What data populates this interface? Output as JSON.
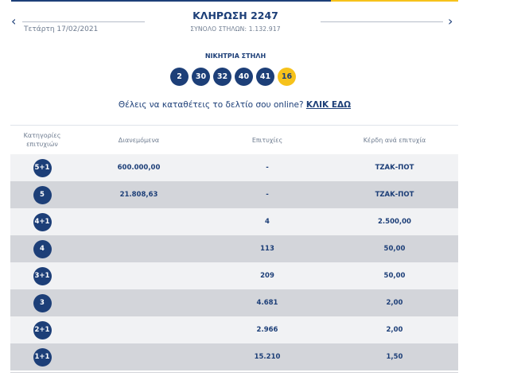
{
  "header": {
    "title": "ΚΛΗΡΩΣΗ 2247",
    "date": "Τετάρτη 17/02/2021",
    "columns": "ΣΥΝΟΛΟ ΣΤΗΛΩΝ: 1.132.917",
    "prev_icon": "chevron-left-icon",
    "next_icon": "chevron-right-icon"
  },
  "winning": {
    "label": "ΝΙΚΗΤΡΙΑ ΣΤΗΛΗ",
    "numbers": [
      "2",
      "30",
      "32",
      "40",
      "41"
    ],
    "joker": "16"
  },
  "cta": {
    "text": "Θέλεις να καταθέτεις το δελτίο σου online?",
    "link": "ΚΛΙΚ ΕΔΩ"
  },
  "table": {
    "headers": {
      "category_line1": "Κατηγορίες",
      "category_line2": "επιτυχιών",
      "distributed": "Διανεμόμενα",
      "winners": "Επιτυχίες",
      "prize": "Κέρδη ανά επιτυχία"
    },
    "rows": [
      {
        "category": "5+1",
        "distributed": "600.000,00",
        "winners": "-",
        "prize": "ΤΖΑΚ-ΠΟΤ"
      },
      {
        "category": "5",
        "distributed": "21.808,63",
        "winners": "-",
        "prize": "ΤΖΑΚ-ΠΟΤ"
      },
      {
        "category": "4+1",
        "distributed": "",
        "winners": "4",
        "prize": "2.500,00"
      },
      {
        "category": "4",
        "distributed": "",
        "winners": "113",
        "prize": "50,00"
      },
      {
        "category": "3+1",
        "distributed": "",
        "winners": "209",
        "prize": "50,00"
      },
      {
        "category": "3",
        "distributed": "",
        "winners": "4.681",
        "prize": "2,00"
      },
      {
        "category": "2+1",
        "distributed": "",
        "winners": "2.966",
        "prize": "2,00"
      },
      {
        "category": "1+1",
        "distributed": "",
        "winners": "15.210",
        "prize": "1,50"
      }
    ]
  },
  "colors": {
    "primary": "#1d3f78",
    "accent": "#f6c21b",
    "row_light": "#f1f2f4",
    "row_dark": "#d3d5da"
  }
}
